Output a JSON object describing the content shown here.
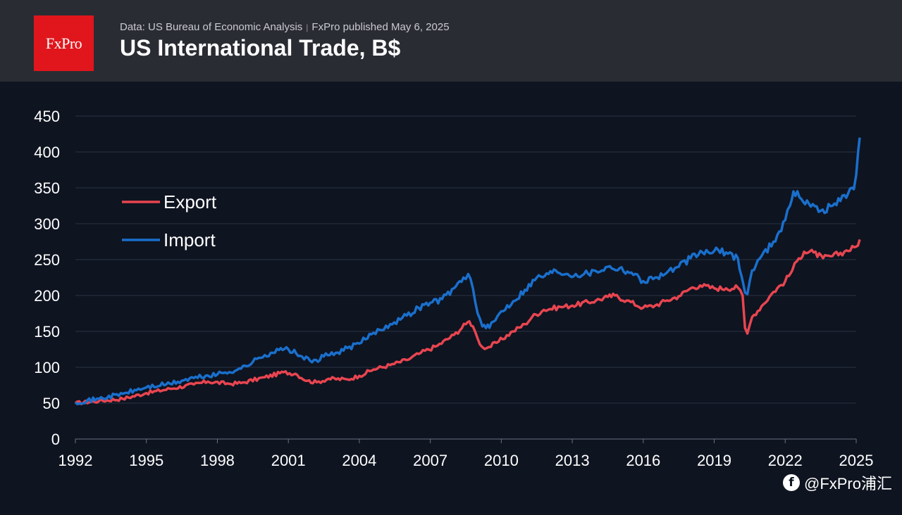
{
  "header": {
    "logo_text": "FxPro",
    "source_text": "Data: US Bureau of Economic Analysis",
    "published_text": "FxPro published May 6, 2025",
    "title": "US International Trade, B$"
  },
  "watermark": {
    "text": "@FxPro浦汇",
    "icon": "social-app-icon"
  },
  "colors": {
    "background": "#0e1420",
    "header_bg": "#2a2c33",
    "logo_bg": "#e0161c",
    "export": "#e84550",
    "import": "#1a6fcc",
    "grid": "#2a3344"
  },
  "chart_data": {
    "type": "line",
    "title": "US International Trade, B$",
    "xlabel": "",
    "ylabel": "",
    "ylim": [
      0,
      450
    ],
    "yticks": [
      0,
      50,
      100,
      150,
      200,
      250,
      300,
      350,
      400,
      450
    ],
    "xlim": [
      1992,
      2025
    ],
    "xticks": [
      1992,
      1995,
      1998,
      2001,
      2004,
      2007,
      2010,
      2013,
      2016,
      2019,
      2022,
      2025
    ],
    "grid": "horizontal",
    "legend_position": "upper-left",
    "series": [
      {
        "name": "Export",
        "color": "#e84550",
        "points": [
          [
            1992.0,
            50
          ],
          [
            1993.0,
            53
          ],
          [
            1994.0,
            56
          ],
          [
            1995.0,
            64
          ],
          [
            1996.0,
            70
          ],
          [
            1997.0,
            76
          ],
          [
            1997.6,
            80
          ],
          [
            1998.5,
            77
          ],
          [
            1999.0,
            78
          ],
          [
            2000.0,
            86
          ],
          [
            2000.8,
            93
          ],
          [
            2001.3,
            91
          ],
          [
            2001.8,
            81
          ],
          [
            2002.2,
            79
          ],
          [
            2002.7,
            84
          ],
          [
            2003.5,
            83
          ],
          [
            2004.0,
            88
          ],
          [
            2004.6,
            97
          ],
          [
            2005.3,
            103
          ],
          [
            2006.0,
            110
          ],
          [
            2006.6,
            120
          ],
          [
            2007.3,
            130
          ],
          [
            2008.0,
            145
          ],
          [
            2008.5,
            160
          ],
          [
            2008.65,
            164
          ],
          [
            2008.8,
            157
          ],
          [
            2009.0,
            140
          ],
          [
            2009.2,
            128
          ],
          [
            2009.4,
            127
          ],
          [
            2009.8,
            134
          ],
          [
            2010.5,
            150
          ],
          [
            2011.0,
            160
          ],
          [
            2011.3,
            170
          ],
          [
            2011.8,
            180
          ],
          [
            2012.5,
            184
          ],
          [
            2013.0,
            186
          ],
          [
            2014.0,
            193
          ],
          [
            2014.5,
            198
          ],
          [
            2014.8,
            200
          ],
          [
            2015.3,
            193
          ],
          [
            2016.0,
            183
          ],
          [
            2016.5,
            186
          ],
          [
            2017.0,
            193
          ],
          [
            2017.5,
            199
          ],
          [
            2018.0,
            210
          ],
          [
            2018.4,
            214
          ],
          [
            2019.0,
            210
          ],
          [
            2019.5,
            210
          ],
          [
            2020.0,
            211
          ],
          [
            2020.2,
            200
          ],
          [
            2020.3,
            155
          ],
          [
            2020.4,
            147
          ],
          [
            2020.6,
            170
          ],
          [
            2021.0,
            185
          ],
          [
            2021.5,
            205
          ],
          [
            2022.0,
            220
          ],
          [
            2022.3,
            235
          ],
          [
            2022.5,
            248
          ],
          [
            2022.8,
            261
          ],
          [
            2023.2,
            260
          ],
          [
            2023.6,
            252
          ],
          [
            2024.0,
            255
          ],
          [
            2024.5,
            261
          ],
          [
            2025.0,
            268
          ],
          [
            2025.15,
            278
          ]
        ]
      },
      {
        "name": "Import",
        "color": "#1a6fcc",
        "points": [
          [
            1992.0,
            51
          ],
          [
            1993.0,
            56
          ],
          [
            1994.0,
            63
          ],
          [
            1995.0,
            72
          ],
          [
            1996.0,
            77
          ],
          [
            1997.0,
            85
          ],
          [
            1998.0,
            90
          ],
          [
            1999.0,
            98
          ],
          [
            2000.0,
            117
          ],
          [
            2000.6,
            124
          ],
          [
            2001.0,
            125
          ],
          [
            2001.5,
            116
          ],
          [
            2002.0,
            107
          ],
          [
            2002.5,
            115
          ],
          [
            2003.0,
            120
          ],
          [
            2004.0,
            133
          ],
          [
            2004.6,
            148
          ],
          [
            2005.3,
            160
          ],
          [
            2006.0,
            172
          ],
          [
            2006.5,
            183
          ],
          [
            2007.0,
            190
          ],
          [
            2007.5,
            195
          ],
          [
            2008.0,
            210
          ],
          [
            2008.4,
            225
          ],
          [
            2008.6,
            230
          ],
          [
            2008.8,
            210
          ],
          [
            2009.0,
            175
          ],
          [
            2009.2,
            157
          ],
          [
            2009.5,
            155
          ],
          [
            2010.0,
            178
          ],
          [
            2010.5,
            192
          ],
          [
            2011.0,
            208
          ],
          [
            2011.5,
            225
          ],
          [
            2012.0,
            230
          ],
          [
            2012.3,
            235
          ],
          [
            2012.8,
            230
          ],
          [
            2013.5,
            230
          ],
          [
            2014.0,
            234
          ],
          [
            2014.5,
            240
          ],
          [
            2015.0,
            238
          ],
          [
            2015.5,
            232
          ],
          [
            2016.0,
            220
          ],
          [
            2016.5,
            225
          ],
          [
            2017.0,
            232
          ],
          [
            2017.5,
            240
          ],
          [
            2018.0,
            252
          ],
          [
            2018.5,
            260
          ],
          [
            2019.0,
            262
          ],
          [
            2019.5,
            260
          ],
          [
            2020.0,
            252
          ],
          [
            2020.3,
            204
          ],
          [
            2020.4,
            202
          ],
          [
            2020.6,
            235
          ],
          [
            2021.0,
            255
          ],
          [
            2021.5,
            275
          ],
          [
            2022.0,
            305
          ],
          [
            2022.2,
            325
          ],
          [
            2022.35,
            345
          ],
          [
            2022.6,
            337
          ],
          [
            2023.0,
            328
          ],
          [
            2023.5,
            318
          ],
          [
            2024.0,
            325
          ],
          [
            2024.5,
            340
          ],
          [
            2024.9,
            348
          ],
          [
            2025.0,
            368
          ],
          [
            2025.08,
            400
          ],
          [
            2025.15,
            420
          ]
        ]
      }
    ]
  }
}
